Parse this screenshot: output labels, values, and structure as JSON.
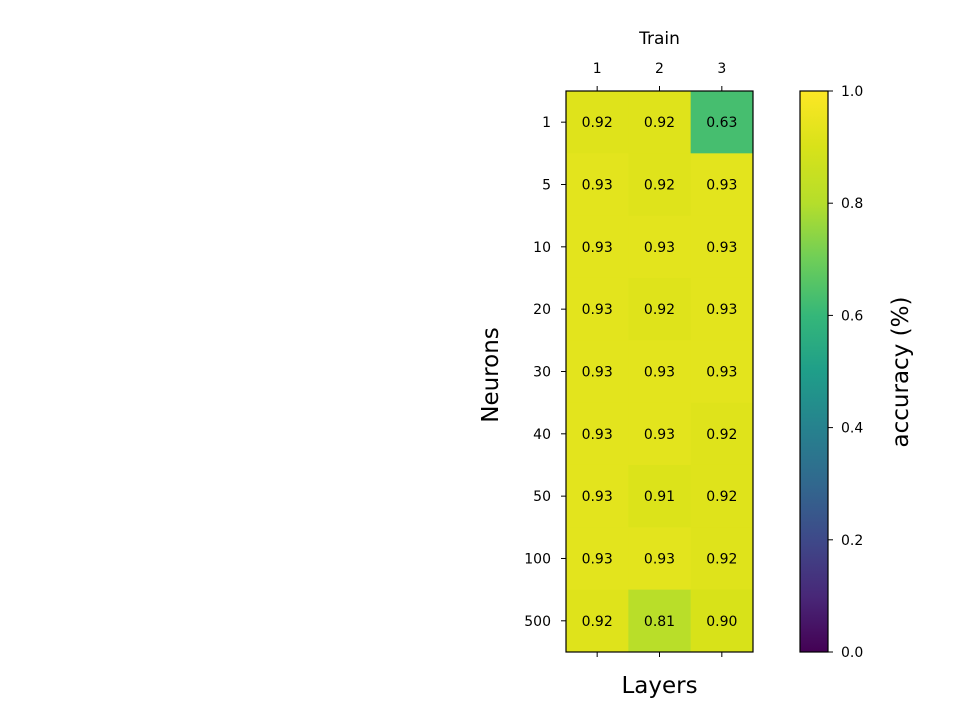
{
  "chart_data": {
    "type": "heatmap",
    "title": "Train",
    "xlabel": "Layers",
    "ylabel": "Neurons",
    "x_categories": [
      "1",
      "2",
      "3"
    ],
    "y_categories": [
      "1",
      "5",
      "10",
      "20",
      "30",
      "40",
      "50",
      "100",
      "500"
    ],
    "values": [
      [
        0.92,
        0.92,
        0.63
      ],
      [
        0.93,
        0.92,
        0.93
      ],
      [
        0.93,
        0.93,
        0.93
      ],
      [
        0.93,
        0.92,
        0.93
      ],
      [
        0.93,
        0.93,
        0.93
      ],
      [
        0.93,
        0.93,
        0.92
      ],
      [
        0.93,
        0.91,
        0.92
      ],
      [
        0.93,
        0.93,
        0.92
      ],
      [
        0.92,
        0.81,
        0.9
      ]
    ],
    "value_labels": [
      [
        "0.92",
        "0.92",
        "0.63"
      ],
      [
        "0.93",
        "0.92",
        "0.93"
      ],
      [
        "0.93",
        "0.93",
        "0.93"
      ],
      [
        "0.93",
        "0.92",
        "0.93"
      ],
      [
        "0.93",
        "0.93",
        "0.93"
      ],
      [
        "0.93",
        "0.93",
        "0.92"
      ],
      [
        "0.93",
        "0.91",
        "0.92"
      ],
      [
        "0.93",
        "0.93",
        "0.92"
      ],
      [
        "0.92",
        "0.81",
        "0.90"
      ]
    ],
    "colorbar": {
      "label": "accuracy (%)",
      "range": [
        0.0,
        1.0
      ],
      "ticks": [
        "0.0",
        "0.2",
        "0.4",
        "0.6",
        "0.8",
        "1.0"
      ],
      "colormap": "viridis"
    },
    "x_axis_position": "top",
    "grid": false
  }
}
